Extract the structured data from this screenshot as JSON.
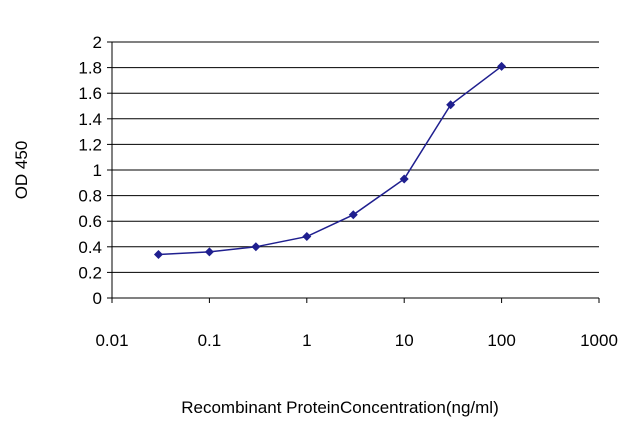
{
  "chart_data": {
    "type": "line",
    "title": "",
    "xlabel": "Recombinant ProteinConcentration(ng/ml)",
    "ylabel": "OD 450",
    "x_scale": "log",
    "xlim": [
      0.01,
      1000
    ],
    "ylim": [
      0,
      2
    ],
    "x_ticks": [
      0.01,
      0.1,
      1,
      10,
      100,
      1000
    ],
    "x_tick_labels": [
      "0.01",
      "0.1",
      "1",
      "10",
      "100",
      "1000"
    ],
    "y_ticks": [
      0,
      0.2,
      0.4,
      0.6,
      0.8,
      1,
      1.2,
      1.4,
      1.6,
      1.8,
      2
    ],
    "y_tick_labels": [
      "0",
      "0.2",
      "0.4",
      "0.6",
      "0.8",
      "1",
      "1.2",
      "1.4",
      "1.6",
      "1.8",
      "2"
    ],
    "grid": "horizontal",
    "legend": "none",
    "series": [
      {
        "color": "#1f1f8f",
        "marker": "diamond",
        "x": [
          0.03,
          0.1,
          0.3,
          1,
          3,
          10,
          30,
          100
        ],
        "y": [
          0.34,
          0.36,
          0.4,
          0.48,
          0.65,
          0.93,
          1.51,
          1.81
        ]
      }
    ]
  }
}
